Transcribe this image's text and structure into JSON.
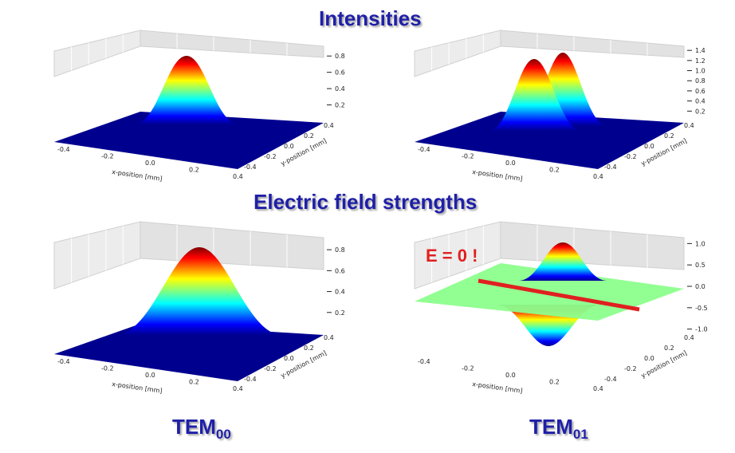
{
  "headings": {
    "intensities": "Intensities",
    "fields": "Electric field strengths"
  },
  "modes": {
    "left": {
      "base": "TEM",
      "sub": "00"
    },
    "right": {
      "base": "TEM",
      "sub": "01"
    }
  },
  "annotation": "E = 0 !",
  "chart_data": [
    {
      "type": "surface3d",
      "name": "TEM00 intensity",
      "xlabel": "x-position [mm]",
      "ylabel": "y-position [mm]",
      "x_ticks": [
        "-0.4",
        "-0.2",
        "0.0",
        "0.2",
        "0.4"
      ],
      "y_ticks": [
        "-0.4",
        "-0.2",
        "0.0",
        "0.2",
        "0.4"
      ],
      "z_ticks": [
        "0.2",
        "0.4",
        "0.6",
        "0.8"
      ],
      "zlim": [
        0,
        0.9
      ],
      "peak": 0.9,
      "colormap": "jet"
    },
    {
      "type": "surface3d",
      "name": "TEM01 intensity",
      "xlabel": "x-position [mm]",
      "ylabel": "y-position [mm]",
      "x_ticks": [
        "-0.4",
        "-0.2",
        "0.0",
        "0.2",
        "0.4"
      ],
      "y_ticks": [
        "-0.4",
        "-0.2",
        "0.0",
        "0.2",
        "0.4"
      ],
      "z_ticks": [
        "0.2",
        "0.4",
        "0.6",
        "0.8",
        "1.0",
        "1.2",
        "1.4"
      ],
      "zlim": [
        0,
        1.45
      ],
      "peak": 1.4,
      "colormap": "jet"
    },
    {
      "type": "surface3d",
      "name": "TEM00 electric field",
      "xlabel": "x-position [mm]",
      "ylabel": "y-position [mm]",
      "x_ticks": [
        "-0.4",
        "-0.2",
        "0.0",
        "0.2",
        "0.4"
      ],
      "y_ticks": [
        "-0.4",
        "-0.2",
        "0.0",
        "0.2",
        "0.4"
      ],
      "z_ticks": [
        "0.2",
        "0.4",
        "0.6",
        "0.8"
      ],
      "zlim": [
        0,
        0.9
      ],
      "peak": 0.9,
      "colormap": "jet"
    },
    {
      "type": "surface3d",
      "name": "TEM01 electric field",
      "xlabel": "x-position [mm]",
      "ylabel": "y-position [mm]",
      "x_ticks": [
        "-0.4",
        "-0.2",
        "0.0",
        "0.2",
        "0.4"
      ],
      "y_ticks": [
        "-0.4",
        "-0.2",
        "0.0",
        "0.2",
        "0.4"
      ],
      "z_ticks": [
        "-1.0",
        "-0.5",
        "0.0",
        "0.5",
        "1.0"
      ],
      "zlim": [
        -1.1,
        1.1
      ],
      "peak": 1.0,
      "colormap": "jet"
    }
  ]
}
